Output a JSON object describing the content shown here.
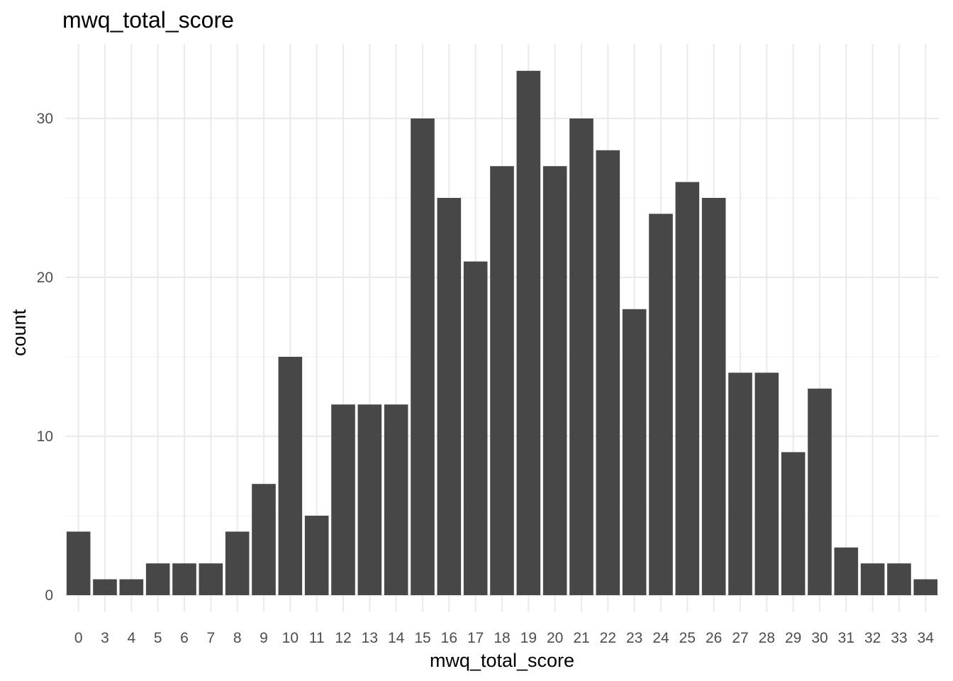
{
  "chart_data": {
    "type": "bar",
    "title": "mwq_total_score",
    "xlabel": "mwq_total_score",
    "ylabel": "count",
    "categories": [
      "0",
      "3",
      "4",
      "5",
      "6",
      "7",
      "8",
      "9",
      "10",
      "11",
      "12",
      "13",
      "14",
      "15",
      "16",
      "17",
      "18",
      "19",
      "20",
      "21",
      "22",
      "23",
      "24",
      "25",
      "26",
      "27",
      "28",
      "29",
      "30",
      "31",
      "32",
      "33",
      "34"
    ],
    "values": [
      4,
      1,
      1,
      2,
      2,
      2,
      4,
      7,
      15,
      5,
      12,
      12,
      12,
      30,
      25,
      21,
      27,
      33,
      27,
      30,
      28,
      18,
      24,
      26,
      25,
      14,
      14,
      9,
      13,
      3,
      2,
      2,
      1
    ],
    "ylim": [
      0,
      35
    ],
    "yticks": [
      "0",
      "10",
      "20",
      "30"
    ],
    "grid": true,
    "bar_color": "#474747"
  }
}
